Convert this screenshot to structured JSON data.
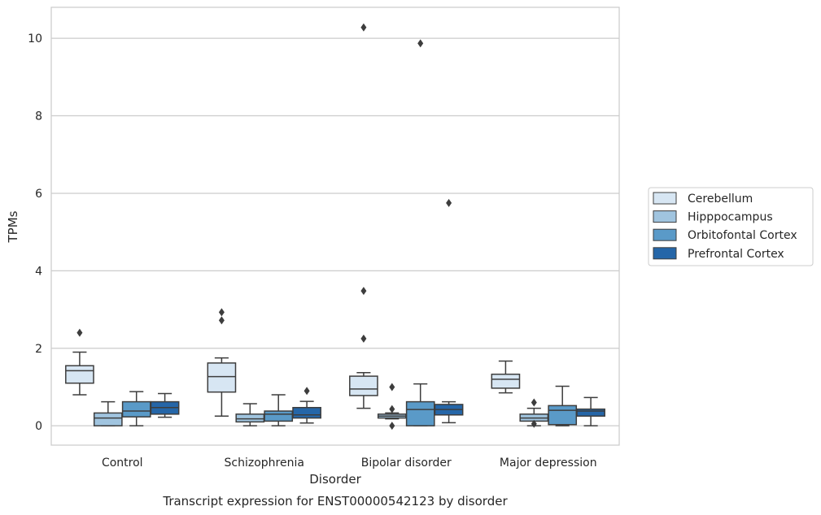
{
  "chart_data": {
    "type": "box",
    "title": "",
    "caption": "Transcript expression for ENST00000542123 by disorder",
    "xlabel": "Disorder",
    "ylabel": "TPMs",
    "ylim": [
      -0.5,
      10.8
    ],
    "yticks": [
      0,
      2,
      4,
      6,
      8,
      10
    ],
    "grid": "horizontal",
    "legend_position": "right-outside",
    "categories": [
      "Control",
      "Schizophrenia",
      "Bipolar disorder",
      "Major depression"
    ],
    "series": [
      {
        "name": "Cerebellum",
        "color": "#d7e6f3",
        "boxes": [
          {
            "whislo": 0.8,
            "q1": 1.1,
            "med": 1.42,
            "q3": 1.55,
            "whishi": 1.9,
            "fliers": [
              2.4
            ]
          },
          {
            "whislo": 0.25,
            "q1": 0.87,
            "med": 1.27,
            "q3": 1.62,
            "whishi": 1.75,
            "fliers": [
              2.72,
              2.93
            ]
          },
          {
            "whislo": 0.45,
            "q1": 0.78,
            "med": 0.95,
            "q3": 1.28,
            "whishi": 1.37,
            "fliers": [
              2.25,
              3.48,
              10.28
            ]
          },
          {
            "whislo": 0.85,
            "q1": 0.97,
            "med": 1.2,
            "q3": 1.33,
            "whishi": 1.67,
            "fliers": []
          }
        ]
      },
      {
        "name": "Hipppocampus",
        "color": "#a0c4df",
        "boxes": [
          {
            "whislo": 0.0,
            "q1": 0.0,
            "med": 0.2,
            "q3": 0.33,
            "whishi": 0.62,
            "fliers": []
          },
          {
            "whislo": 0.0,
            "q1": 0.1,
            "med": 0.18,
            "q3": 0.3,
            "whishi": 0.57,
            "fliers": []
          },
          {
            "whislo": 0.18,
            "q1": 0.2,
            "med": 0.25,
            "q3": 0.3,
            "whishi": 0.33,
            "fliers": [
              0.0,
              0.43,
              1.0
            ]
          },
          {
            "whislo": 0.0,
            "q1": 0.12,
            "med": 0.2,
            "q3": 0.3,
            "whishi": 0.45,
            "fliers": [
              0.05,
              0.6
            ]
          }
        ]
      },
      {
        "name": "Orbitofontal Cortex",
        "color": "#5a9ac8",
        "boxes": [
          {
            "whislo": 0.0,
            "q1": 0.23,
            "med": 0.38,
            "q3": 0.62,
            "whishi": 0.88,
            "fliers": []
          },
          {
            "whislo": 0.0,
            "q1": 0.12,
            "med": 0.3,
            "q3": 0.38,
            "whishi": 0.8,
            "fliers": []
          },
          {
            "whislo": 0.0,
            "q1": 0.0,
            "med": 0.42,
            "q3": 0.62,
            "whishi": 1.08,
            "fliers": [
              9.87
            ]
          },
          {
            "whislo": 0.0,
            "q1": 0.03,
            "med": 0.4,
            "q3": 0.52,
            "whishi": 1.02,
            "fliers": []
          }
        ]
      },
      {
        "name": "Prefrontal Cortex",
        "color": "#2566a8",
        "boxes": [
          {
            "whislo": 0.22,
            "q1": 0.3,
            "med": 0.47,
            "q3": 0.62,
            "whishi": 0.83,
            "fliers": []
          },
          {
            "whislo": 0.07,
            "q1": 0.2,
            "med": 0.28,
            "q3": 0.47,
            "whishi": 0.63,
            "fliers": [
              0.9
            ]
          },
          {
            "whislo": 0.08,
            "q1": 0.28,
            "med": 0.42,
            "q3": 0.55,
            "whishi": 0.62,
            "fliers": [
              5.75
            ]
          },
          {
            "whislo": 0.0,
            "q1": 0.25,
            "med": 0.38,
            "q3": 0.43,
            "whishi": 0.73,
            "fliers": []
          }
        ]
      }
    ]
  }
}
